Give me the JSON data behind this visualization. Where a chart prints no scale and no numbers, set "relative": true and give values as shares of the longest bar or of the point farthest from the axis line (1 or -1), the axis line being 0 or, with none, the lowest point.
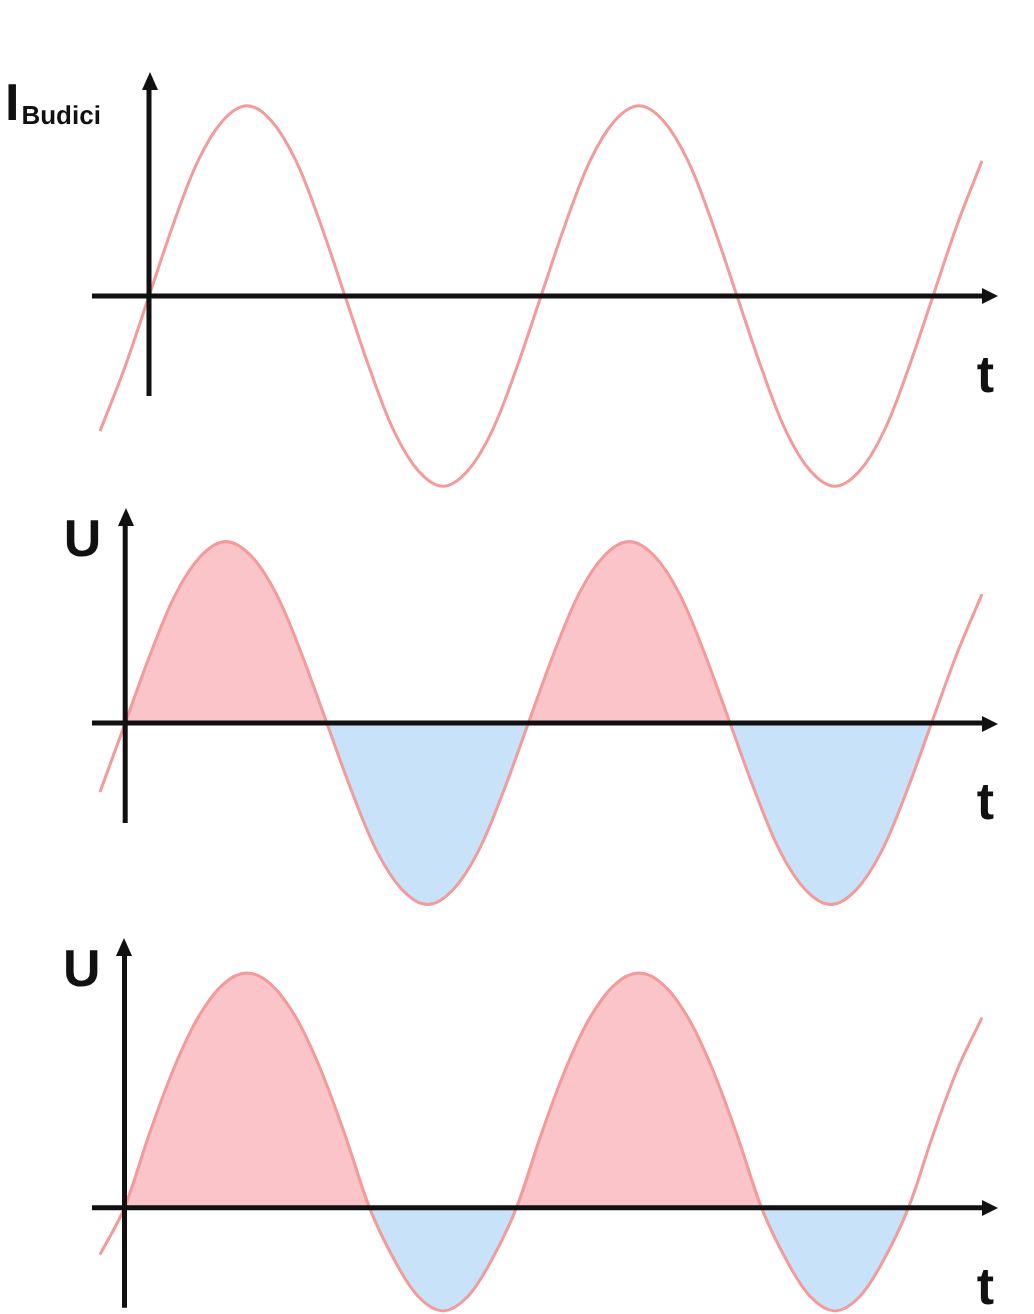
{
  "chart_data": [
    {
      "type": "line",
      "relative": true,
      "ylabel": "I$_{Budici}$",
      "xlabel": "t",
      "marker": "none",
      "categories": [
        null,
        null,
        null,
        null,
        null,
        null,
        null,
        null,
        null,
        null,
        null,
        null,
        null,
        null,
        null,
        null,
        null,
        null,
        null,
        null,
        null,
        null,
        null,
        null,
        null,
        null,
        null,
        null,
        null,
        null,
        null,
        null,
        null,
        null,
        null,
        null,
        null
      ],
      "series": [
        {
          "color": "#f49a9a",
          "values": [
            -0.71,
            -0.38,
            0,
            0.38,
            0.71,
            0.92,
            1,
            0.92,
            0.71,
            0.38,
            0,
            -0.38,
            -0.71,
            -0.92,
            -1,
            -0.92,
            -0.71,
            -0.38,
            0,
            0.38,
            0.71,
            0.92,
            1,
            0.92,
            0.71,
            0.38,
            0,
            -0.38,
            -0.71,
            -0.92,
            -1,
            -0.92,
            -0.71,
            -0.38,
            0,
            0.38,
            0.71
          ]
        }
      ]
    },
    {
      "type": "area",
      "relative": true,
      "ylabel": "U",
      "xlabel": "t",
      "marker": "none",
      "categories": [
        null,
        null,
        null,
        null,
        null,
        null,
        null,
        null,
        null,
        null,
        null,
        null,
        null,
        null,
        null,
        null,
        null,
        null,
        null,
        null,
        null,
        null,
        null,
        null,
        null,
        null,
        null,
        null,
        null,
        null,
        null,
        null,
        null,
        null,
        null,
        null
      ],
      "series": [
        {
          "color": "#fbc4c8",
          "values": [
            null,
            0,
            0.38,
            0.71,
            0.92,
            1,
            0.92,
            0.71,
            0.38,
            0,
            null,
            null,
            null,
            null,
            null,
            null,
            null,
            0,
            0.38,
            0.71,
            0.92,
            1,
            0.92,
            0.71,
            0.38,
            0,
            null,
            null,
            null,
            null,
            null,
            null,
            null,
            null,
            null,
            null
          ]
        },
        {
          "color": "#c8e2fa",
          "values": [
            null,
            null,
            null,
            null,
            null,
            null,
            null,
            null,
            null,
            0,
            -0.38,
            -0.71,
            -0.92,
            -1,
            -0.92,
            -0.71,
            -0.38,
            0,
            null,
            null,
            null,
            null,
            null,
            null,
            null,
            0,
            -0.38,
            -0.71,
            -0.92,
            -1,
            -0.92,
            -0.71,
            -0.38,
            0,
            null,
            null
          ]
        },
        {
          "type": "line",
          "color": "#f49a9a",
          "values": [
            -0.38,
            0,
            0.38,
            0.71,
            0.92,
            1,
            0.92,
            0.71,
            0.38,
            0,
            -0.38,
            -0.71,
            -0.92,
            -1,
            -0.92,
            -0.71,
            -0.38,
            0,
            0.38,
            0.71,
            0.92,
            1,
            0.92,
            0.71,
            0.38,
            0,
            -0.38,
            -0.71,
            -0.92,
            -1,
            -0.92,
            -0.71,
            -0.38,
            0,
            0.38,
            0.71
          ]
        }
      ]
    },
    {
      "type": "area",
      "relative": true,
      "ylabel": "U",
      "xlabel": "t",
      "marker": "none",
      "categories": [
        null,
        null,
        null,
        null,
        null,
        null,
        null,
        null,
        null,
        null,
        null,
        null,
        null,
        null,
        null,
        null,
        null,
        null,
        null,
        null,
        null,
        null,
        null,
        null,
        null,
        null,
        null,
        null,
        null,
        null,
        null,
        null,
        null,
        null,
        null,
        null,
        null
      ],
      "series": [
        {
          "color": "#fbc4c8",
          "values": [
            null,
            0,
            0.31,
            0.59,
            0.81,
            0.95,
            1,
            0.95,
            0.81,
            0.59,
            0.31,
            0,
            null,
            null,
            null,
            null,
            null,
            0,
            0.31,
            0.59,
            0.81,
            0.95,
            1,
            0.95,
            0.81,
            0.59,
            0.31,
            0,
            null,
            null,
            null,
            null,
            null,
            null,
            null,
            null,
            null
          ]
        },
        {
          "color": "#c8e2fa",
          "values": [
            null,
            null,
            null,
            null,
            null,
            null,
            null,
            null,
            null,
            null,
            null,
            0,
            -0.22,
            -0.38,
            -0.44,
            -0.38,
            -0.22,
            0,
            null,
            null,
            null,
            null,
            null,
            null,
            null,
            null,
            null,
            0,
            -0.22,
            -0.38,
            -0.44,
            -0.38,
            -0.22,
            0,
            null,
            null,
            null
          ]
        },
        {
          "type": "line",
          "color": "#f49a9a",
          "values": [
            -0.2,
            0,
            0.31,
            0.59,
            0.81,
            0.95,
            1,
            0.95,
            0.81,
            0.59,
            0.31,
            0,
            -0.22,
            -0.38,
            -0.44,
            -0.38,
            -0.22,
            0,
            0.31,
            0.59,
            0.81,
            0.95,
            1,
            0.95,
            0.81,
            0.59,
            0.31,
            0,
            -0.22,
            -0.38,
            -0.44,
            -0.38,
            -0.22,
            0,
            0.31,
            0.59,
            0.81
          ]
        }
      ]
    }
  ]
}
